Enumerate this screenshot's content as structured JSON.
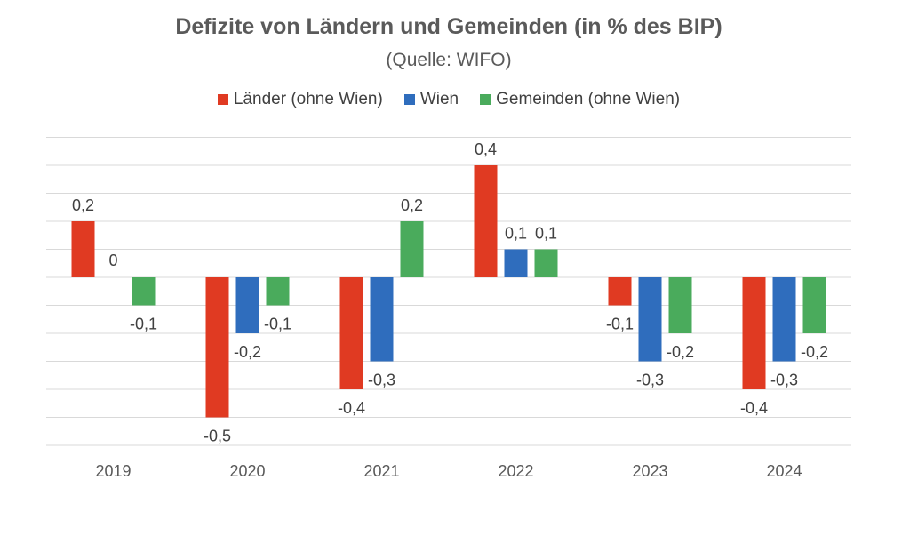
{
  "chart_data": {
    "type": "bar",
    "title": "Defizite von Ländern und Gemeinden (in % des BIP)",
    "subtitle": "(Quelle: WIFO)",
    "xlabel": "",
    "ylabel": "",
    "categories": [
      "2019",
      "2020",
      "2021",
      "2022",
      "2023",
      "2024"
    ],
    "series": [
      {
        "name": "Länder (ohne Wien)",
        "color": "#e03a22",
        "values": [
          0.2,
          -0.5,
          -0.4,
          0.4,
          -0.1,
          -0.4
        ]
      },
      {
        "name": "Wien",
        "color": "#2f6dbd",
        "values": [
          0,
          -0.2,
          -0.3,
          0.1,
          -0.3,
          -0.3
        ]
      },
      {
        "name": "Gemeinden (ohne Wien)",
        "color": "#4aab5c",
        "values": [
          -0.1,
          -0.1,
          0.2,
          0.1,
          -0.2,
          -0.2
        ]
      }
    ],
    "data_labels": [
      [
        "0,2",
        "0",
        "-0,1"
      ],
      [
        "-0,5",
        "-0,2",
        "-0,1"
      ],
      [
        "-0,4",
        "-0,3",
        "0,2"
      ],
      [
        "0,4",
        "0,1",
        "0,1"
      ],
      [
        "-0,1",
        "-0,3",
        "-0,2"
      ],
      [
        "-0,4",
        "-0,3",
        "-0,2"
      ]
    ],
    "ylim": [
      -0.6,
      0.5
    ],
    "gridlines": [
      0.5,
      0.4,
      0.3,
      0.2,
      0.1,
      0.0,
      -0.1,
      -0.2,
      -0.3,
      -0.4,
      -0.5,
      -0.6
    ],
    "grid": true,
    "axis_tick_labels_y": false,
    "legend_position": "top"
  }
}
